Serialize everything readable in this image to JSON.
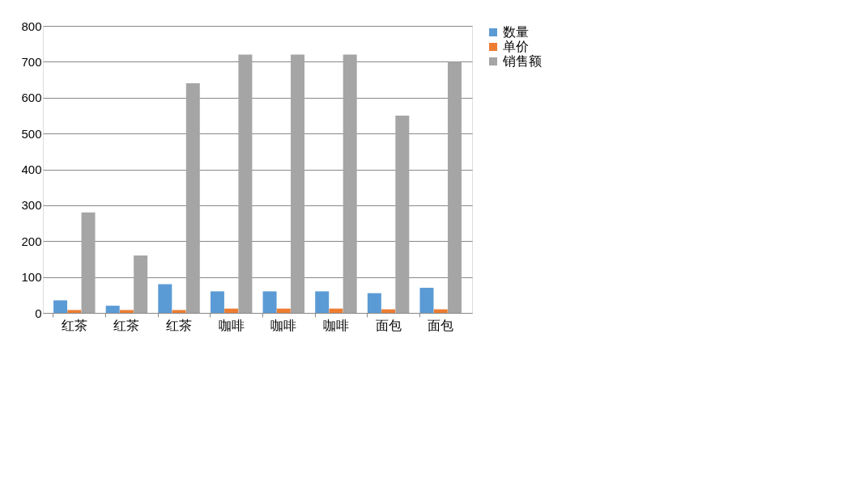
{
  "chart_data": {
    "type": "bar",
    "categories": [
      "红茶",
      "红茶",
      "红茶",
      "咖啡",
      "咖啡",
      "咖啡",
      "面包",
      "面包"
    ],
    "series": [
      {
        "name": "数量",
        "color": "#5b9bd5",
        "values": [
          35,
          20,
          80,
          60,
          60,
          60,
          55,
          70
        ]
      },
      {
        "name": "单价",
        "color": "#ed7d31",
        "values": [
          8,
          8,
          8,
          12,
          12,
          12,
          10,
          10
        ]
      },
      {
        "name": "销售额",
        "color": "#a5a5a5",
        "values": [
          280,
          160,
          640,
          720,
          720,
          720,
          550,
          700
        ]
      }
    ],
    "ylim": [
      0,
      800
    ],
    "yticks": [
      0,
      100,
      200,
      300,
      400,
      500,
      600,
      700,
      800
    ],
    "grid": "y",
    "legend": "right"
  }
}
